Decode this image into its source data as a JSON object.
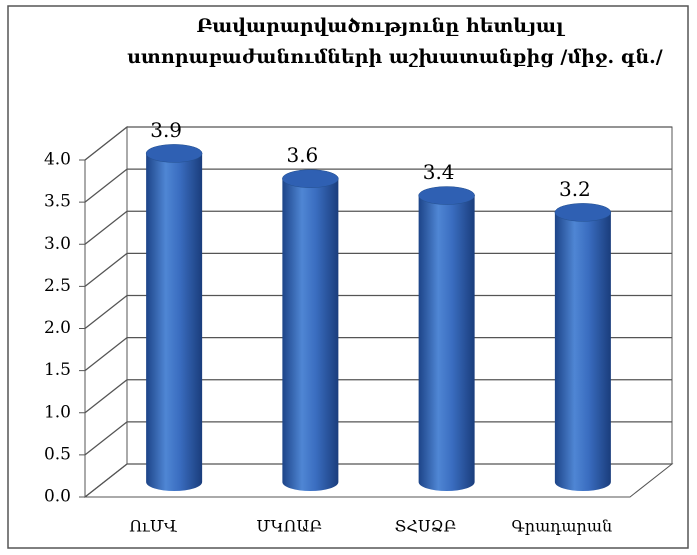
{
  "chart_data": {
    "type": "bar",
    "title": [
      "Բավարարվածությունը հետևյալ",
      "ստորաբաժանումների աշխատանքից /միջ. գն./"
    ],
    "categories": [
      "ՈւՄՎ",
      "ՄԿՈԱԲ",
      "ՏՀՍՁԲ",
      "Գրադարան"
    ],
    "values": [
      3.9,
      3.6,
      3.4,
      3.2
    ],
    "color": "#2f5fb0",
    "ylim": [
      0,
      4
    ],
    "yticks": [
      {
        "value": 0,
        "label": "0.0"
      },
      0.5,
      {
        "value": 1,
        "label": "1.0"
      },
      1.5,
      {
        "value": 2,
        "label": "2.0"
      },
      2.5,
      {
        "value": 3,
        "label": "3.0"
      },
      3.5,
      {
        "value": 4,
        "label": "4.0"
      }
    ],
    "grid": true
  }
}
